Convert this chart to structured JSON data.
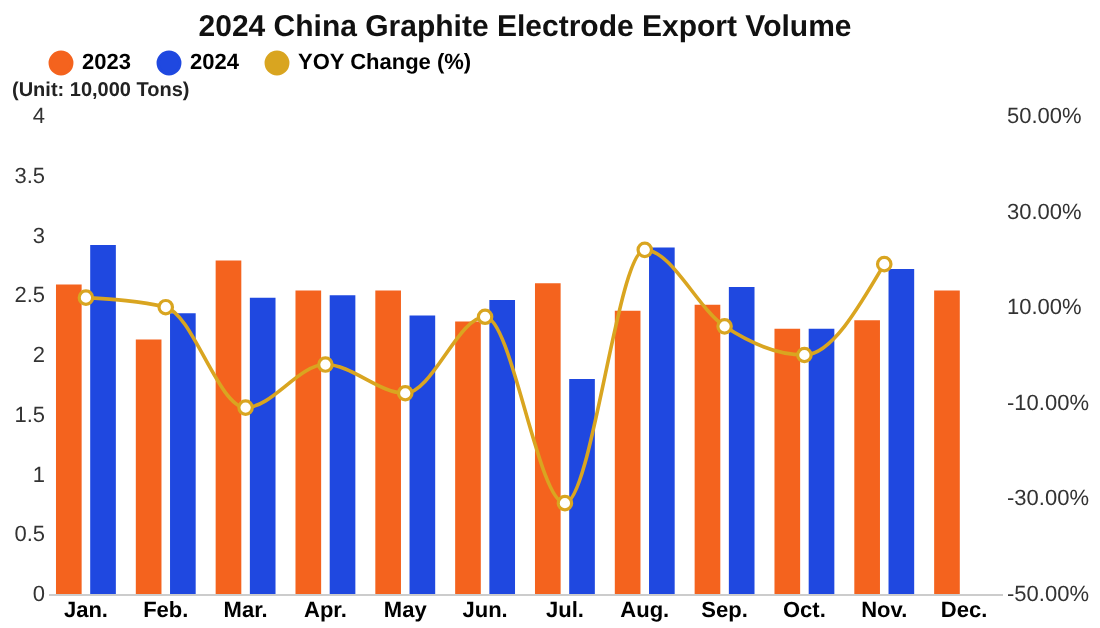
{
  "chart_data": {
    "type": "bar",
    "title": "2024 China Graphite Electrode Export Volume",
    "annotations": [
      "(Unit: 10,000 Tons)"
    ],
    "categories": [
      "Jan.",
      "Feb.",
      "Mar.",
      "Apr.",
      "May",
      "Jun.",
      "Jul.",
      "Aug.",
      "Sep.",
      "Oct.",
      "Nov.",
      "Dec."
    ],
    "series": [
      {
        "name": "2023",
        "color": "#f4631e",
        "values": [
          2.59,
          2.13,
          2.79,
          2.54,
          2.54,
          2.28,
          2.6,
          2.37,
          2.42,
          2.22,
          2.29,
          2.54
        ]
      },
      {
        "name": "2024",
        "color": "#1f48e0",
        "values": [
          2.92,
          2.35,
          2.48,
          2.5,
          2.33,
          2.46,
          1.8,
          2.9,
          2.57,
          2.22,
          2.72,
          null
        ]
      },
      {
        "name": "YOY Change (%)",
        "type": "line",
        "axis": "y2",
        "color": "#d9a520",
        "marker": "circle",
        "values": [
          12,
          10,
          -11,
          -2,
          -8,
          8,
          -31,
          22,
          6,
          0,
          19,
          null
        ]
      }
    ],
    "ylim": [
      0,
      4
    ],
    "yticks": [
      0,
      0.5,
      1,
      1.5,
      2,
      2.5,
      3,
      3.5,
      4
    ],
    "y2lim": [
      -50,
      50
    ],
    "y2ticks": [
      {
        "value": 50,
        "label": "50.00%"
      },
      {
        "value": 30,
        "label": "30.00%"
      },
      {
        "value": 10,
        "label": "10.00%"
      },
      {
        "value": -10,
        "label": "-10.00%"
      },
      {
        "value": -30,
        "label": "-30.00%"
      },
      {
        "value": -50,
        "label": "-50.00%"
      }
    ],
    "legend": "top"
  }
}
